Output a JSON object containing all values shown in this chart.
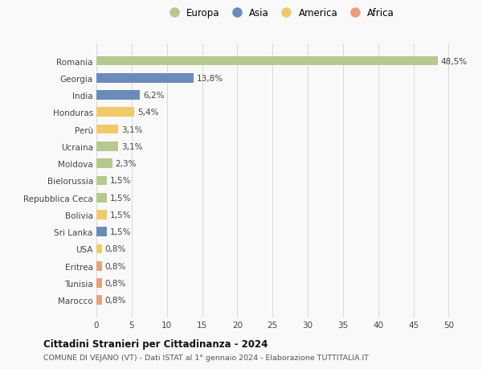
{
  "categories": [
    "Marocco",
    "Tunisia",
    "Eritrea",
    "USA",
    "Sri Lanka",
    "Bolivia",
    "Repubblica Ceca",
    "Bielorussia",
    "Moldova",
    "Ucraina",
    "Perù",
    "Honduras",
    "India",
    "Georgia",
    "Romania"
  ],
  "values": [
    0.8,
    0.8,
    0.8,
    0.8,
    1.5,
    1.5,
    1.5,
    1.5,
    2.3,
    3.1,
    3.1,
    5.4,
    6.2,
    13.8,
    48.5
  ],
  "labels": [
    "0,8%",
    "0,8%",
    "0,8%",
    "0,8%",
    "1,5%",
    "1,5%",
    "1,5%",
    "1,5%",
    "2,3%",
    "3,1%",
    "3,1%",
    "5,4%",
    "6,2%",
    "13,8%",
    "48,5%"
  ],
  "continents": [
    "Africa",
    "Africa",
    "Africa",
    "America",
    "Asia",
    "America",
    "Europa",
    "Europa",
    "Europa",
    "Europa",
    "America",
    "America",
    "Asia",
    "Asia",
    "Europa"
  ],
  "colors": {
    "Europa": "#b5c98e",
    "Asia": "#6b8cba",
    "America": "#f0c96b",
    "Africa": "#e8a07a"
  },
  "legend_order": [
    "Europa",
    "Asia",
    "America",
    "Africa"
  ],
  "xlim": [
    0,
    52
  ],
  "xticks": [
    0,
    5,
    10,
    15,
    20,
    25,
    30,
    35,
    40,
    45,
    50
  ],
  "title": "Cittadini Stranieri per Cittadinanza - 2024",
  "subtitle": "COMUNE DI VEJANO (VT) - Dati ISTAT al 1° gennaio 2024 - Elaborazione TUTTITALIA.IT",
  "bg_color": "#f9f9f9",
  "grid_color": "#d8d8d8",
  "bar_height": 0.55,
  "label_fontsize": 7.5,
  "ytick_fontsize": 7.5,
  "xtick_fontsize": 7.5
}
